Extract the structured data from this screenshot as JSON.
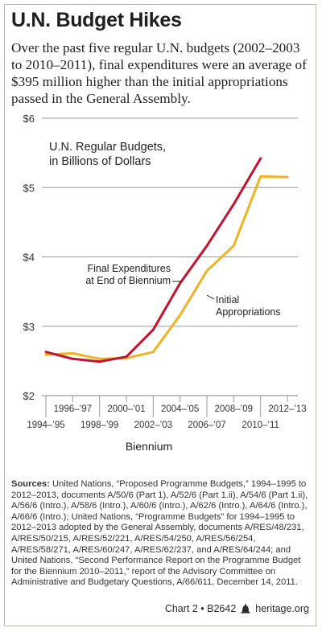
{
  "title": "U.N. Budget Hikes",
  "subtitle": "Over the past five regular U.N. budgets (2002–2003 to 2010–2011), final expenditures were an average of $395 million higher than the initial appropriations passed in the General Assembly.",
  "chart_data": {
    "type": "line",
    "title": "U.N. Regular Budgets, in Billions of Dollars",
    "title_lines": [
      "U.N. Regular Budgets,",
      "in Billions of Dollars"
    ],
    "xlabel": "Biennium",
    "ylabel": "",
    "ylim": [
      2,
      6
    ],
    "yticks": [
      2,
      3,
      4,
      5,
      6
    ],
    "ytick_labels": [
      "$2",
      "$3",
      "$4",
      "$5",
      "$6"
    ],
    "grid": true,
    "categories": [
      "1994–’95",
      "1996–’97",
      "1998–’99",
      "2000–’01",
      "2002–’03",
      "2004–’05",
      "2006–’07",
      "2008–’09",
      "2010–’11",
      "2012–’13"
    ],
    "series": [
      {
        "name": "Final Expenditures at End of Biennium",
        "label_lines": [
          "Final Expenditures",
          "at End of Biennium"
        ],
        "color": "#c4122f",
        "values": [
          2.63,
          2.53,
          2.49,
          2.56,
          2.95,
          3.62,
          4.16,
          4.76,
          5.42,
          null
        ]
      },
      {
        "name": "Initial Appropriations",
        "label_lines": [
          "Initial",
          "Appropriations"
        ],
        "color": "#f0b323",
        "values": [
          2.59,
          2.61,
          2.53,
          2.54,
          2.63,
          3.16,
          3.8,
          4.16,
          5.16,
          5.15
        ]
      }
    ]
  },
  "sources": {
    "label": "Sources:",
    "text": "United Nations, “Proposed Programme Budgets,” 1994–1995 to 2012–2013, documents A/50/6 (Part 1), A/52/6 (Part 1.ii), A/54/6 (Part 1.ii), A/56/6 (Intro.), A/58/6 (Intro.), A/60/6 (Intro.), A/62/6 (Intro.), A/64/6 (Intro.), A/66/6 (Intro.); United Nations, “Programme Budgets” for 1994–1995 to 2012–2013 adopted by the General Assembly, documents A/RES/48/231, A/RES/50/215, A/RES/52/221, A/RES/54/250, A/RES/56/254, A/RES/58/271, A/RES/60/247, A/RES/62/237, and A/RES/64/244; and United Nations, “Second Performance Report on the Programme Budget for the Biennium 2010–2011,” report of the Advisory Committee on Administrative and Budgetary Questions, A/66/611, December 14, 2011."
  },
  "footer": {
    "chart_id": "Chart 2 • B2642",
    "site": "heritage.org",
    "icon": "liberty-bell-icon"
  }
}
